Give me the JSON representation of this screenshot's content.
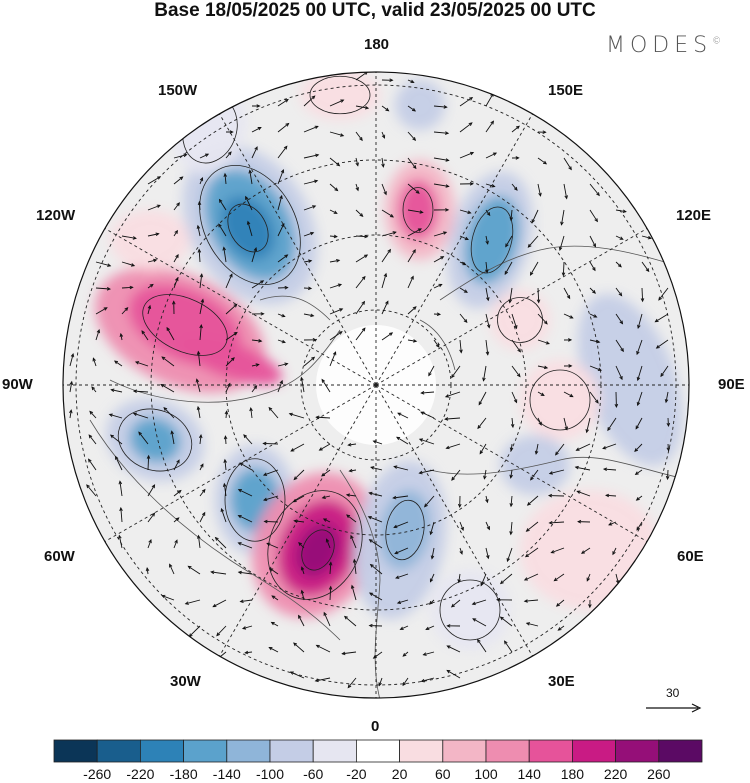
{
  "title": "Base 18/05/2025 00 UTC, valid 23/05/2025 00 UTC",
  "brand": "MODES",
  "brand_mark": "©",
  "longitude_labels": {
    "top": "180",
    "bottom": "0",
    "left": "90W",
    "right": "90E",
    "ul1": "150W",
    "ul2": "120W",
    "ur1": "150E",
    "ur2": "120E",
    "ll1": "60W",
    "ll2": "30W",
    "lr1": "60E",
    "lr2": "30E"
  },
  "reference_vector": {
    "label": "30"
  },
  "colorbar": {
    "tick_labels": [
      "-260",
      "-220",
      "-180",
      "-140",
      "-100",
      "-60",
      "-20",
      "20",
      "60",
      "100",
      "140",
      "180",
      "220",
      "260"
    ],
    "colors": [
      "#0b3557",
      "#195e8d",
      "#2d82b7",
      "#5ba2cc",
      "#8fb5d9",
      "#c4cde6",
      "#e6e6f1",
      "#ffffff",
      "#f9dde1",
      "#f3b6c6",
      "#ee8db0",
      "#e6539a",
      "#c91b84",
      "#950f78",
      "#5b0a64"
    ]
  },
  "field_colors": {
    "background_gray": "#eeeeee",
    "polar_cap": "#ffffff",
    "vector": "#111111",
    "coast": "#555555"
  }
}
